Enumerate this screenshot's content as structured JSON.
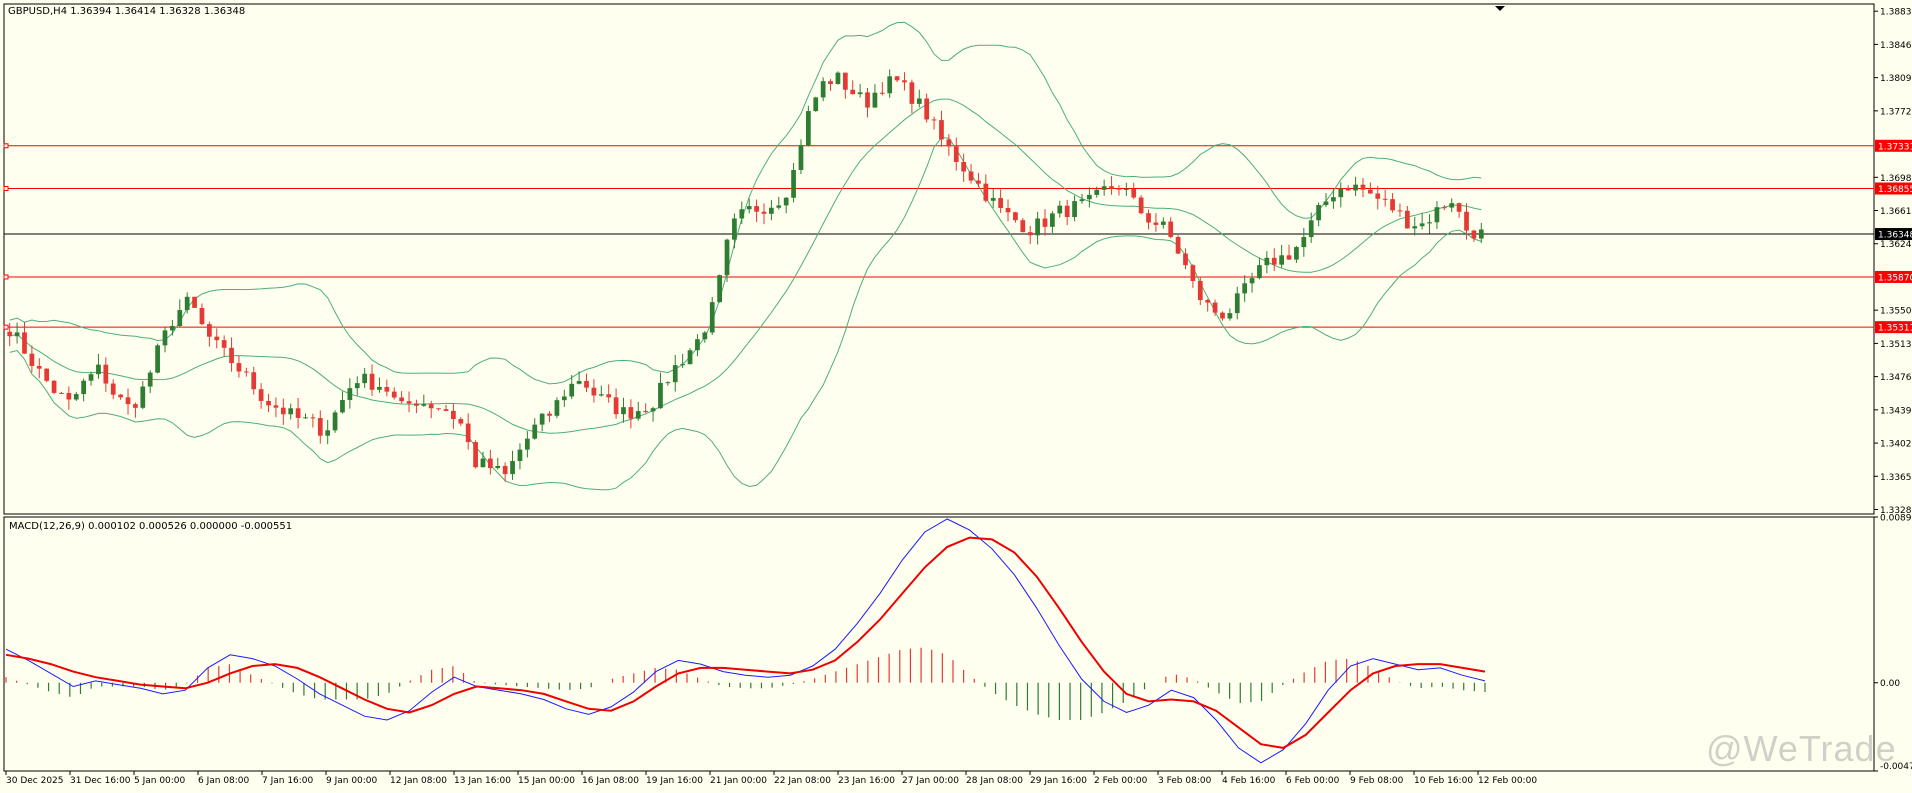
{
  "window": {
    "header": "GBPUSD,H4  1.36394 1.36414 1.36328 1.36348",
    "macd_header": "MACD(12,26,9) 0.000102 0.000526 0.000000 -0.000551",
    "watermark": "@WeTrade"
  },
  "colors": {
    "background": "#fffff0",
    "bull": "#2e7d32",
    "bear": "#e53935",
    "band": "#4caf77",
    "level_line": "#ff0000",
    "price_line": "#000000",
    "macd_line": "#1a1aff",
    "signal_line": "#ee0000",
    "hist_up": "#e53935",
    "hist_down": "#2e7d32"
  },
  "chart_data": [
    {
      "type": "candlestick",
      "symbol": "GBPUSD",
      "timeframe": "H4",
      "ohlc_current": {
        "open": 1.36394,
        "high": 1.36414,
        "low": 1.36328,
        "close": 1.36348
      },
      "y_ticks": [
        "1.38830",
        "1.38460",
        "1.38090",
        "1.37720",
        "1.36980",
        "1.36610",
        "1.36240",
        "1.35500",
        "1.35130",
        "1.34760",
        "1.34390",
        "1.34020",
        "1.33650",
        "1.33280"
      ],
      "ylim": [
        1.3323,
        1.3891
      ],
      "x_ticks": [
        "30 Dec 2025",
        "31 Dec 16:00",
        "5 Jan 00:00",
        "6 Jan 08:00",
        "7 Jan 16:00",
        "9 Jan 00:00",
        "12 Jan 08:00",
        "13 Jan 16:00",
        "15 Jan 00:00",
        "16 Jan 08:00",
        "19 Jan 16:00",
        "21 Jan 00:00",
        "22 Jan 08:00",
        "23 Jan 16:00",
        "27 Jan 00:00",
        "28 Jan 08:00",
        "29 Jan 16:00",
        "2 Feb 00:00",
        "3 Feb 08:00",
        "4 Feb 16:00",
        "6 Feb 00:00",
        "9 Feb 08:00",
        "10 Feb 16:00",
        "12 Feb 00:00"
      ],
      "horizontal_levels": [
        1.37331,
        1.36855,
        1.3587,
        1.35311
      ],
      "level_labels": [
        "1.37331",
        "1.36855",
        "1.35870",
        "1.35311"
      ],
      "current_price": 1.36348,
      "current_price_label": "1.36348",
      "close_path": [
        1.353,
        1.3505,
        1.348,
        1.346,
        1.3445,
        1.347,
        1.3485,
        1.3455,
        1.344,
        1.3465,
        1.351,
        1.3545,
        1.356,
        1.3525,
        1.3505,
        1.349,
        1.347,
        1.345,
        1.344,
        1.343,
        1.3425,
        1.3415,
        1.3445,
        1.3475,
        1.347,
        1.3465,
        1.344,
        1.345,
        1.3445,
        1.344,
        1.3425,
        1.338,
        1.3375,
        1.3365,
        1.3395,
        1.342,
        1.3435,
        1.346,
        1.3475,
        1.3455,
        1.3445,
        1.3435,
        1.344,
        1.345,
        1.348,
        1.35,
        1.352,
        1.356,
        1.364,
        1.366,
        1.3665,
        1.367,
        1.369,
        1.376,
        1.38,
        1.381,
        1.3795,
        1.378,
        1.38,
        1.3805,
        1.379,
        1.377,
        1.374,
        1.372,
        1.37,
        1.368,
        1.366,
        1.365,
        1.364,
        1.365,
        1.366,
        1.3665,
        1.367,
        1.3685,
        1.369,
        1.3665,
        1.365,
        1.364,
        1.361,
        1.357,
        1.355,
        1.3545,
        1.3565,
        1.359,
        1.3605,
        1.361,
        1.3625,
        1.3655,
        1.368,
        1.369,
        1.3685,
        1.3675,
        1.3665,
        1.365,
        1.3645,
        1.366,
        1.3675,
        1.364,
        1.3635
      ]
    },
    {
      "type": "bar+line",
      "indicator": "MACD(12,26,9)",
      "y_ticks": [
        "0.008906",
        "0.00",
        "-0.004742"
      ],
      "ylim": [
        -0.004742,
        0.008906
      ],
      "macd": [
        0.0018,
        0.0012,
        0.0005,
        -0.0002,
        0.0001,
        -0.0001,
        -0.0003,
        -0.0006,
        -0.0004,
        0.0008,
        0.0015,
        0.0013,
        0.0009,
        0.0002,
        -0.0006,
        -0.0012,
        -0.0018,
        -0.002,
        -0.0015,
        -0.0005,
        0.0003,
        -0.0002,
        -0.0004,
        -0.0006,
        -0.0009,
        -0.0014,
        -0.0017,
        -0.0013,
        -0.0005,
        0.0006,
        0.0012,
        0.001,
        0.0006,
        0.0004,
        0.0003,
        0.0004,
        0.0009,
        0.0018,
        0.0032,
        0.0048,
        0.0066,
        0.0081,
        0.0088,
        0.0082,
        0.0072,
        0.0058,
        0.004,
        0.002,
        0.0002,
        -0.001,
        -0.0016,
        -0.0012,
        -0.0004,
        -0.0008,
        -0.002,
        -0.0035,
        -0.0043,
        -0.0036,
        -0.0022,
        -0.0004,
        0.0009,
        0.0013,
        0.001,
        0.0007,
        0.0008,
        0.0004,
        0.0001
      ],
      "signal": [
        0.0015,
        0.0013,
        0.001,
        0.0006,
        0.0003,
        0.0001,
        -0.0001,
        -0.0002,
        -0.0003,
        0.0,
        0.0005,
        0.0009,
        0.001,
        0.0008,
        0.0003,
        -0.0003,
        -0.0009,
        -0.0014,
        -0.0016,
        -0.0012,
        -0.0006,
        -0.0002,
        -0.0003,
        -0.0004,
        -0.0006,
        -0.001,
        -0.0014,
        -0.0015,
        -0.001,
        -0.0002,
        0.0005,
        0.0008,
        0.0008,
        0.0007,
        0.0006,
        0.0005,
        0.0007,
        0.0012,
        0.0022,
        0.0034,
        0.0048,
        0.0062,
        0.0073,
        0.0078,
        0.0077,
        0.007,
        0.0057,
        0.004,
        0.0022,
        0.0006,
        -0.0006,
        -0.001,
        -0.0009,
        -0.001,
        -0.0015,
        -0.0024,
        -0.0033,
        -0.0035,
        -0.0028,
        -0.0016,
        -0.0004,
        0.0005,
        0.0009,
        0.001,
        0.001,
        0.0008,
        0.0006
      ],
      "histogram": [
        0.0003,
        -0.0001,
        -0.0005,
        -0.0008,
        -0.0002,
        -0.0002,
        -0.0002,
        -0.0004,
        -0.0001,
        0.0008,
        0.001,
        0.0004,
        -0.0001,
        -0.0006,
        -0.0009,
        -0.0009,
        -0.0009,
        -0.0006,
        0.0001,
        0.0007,
        0.0009,
        0.0,
        -0.0001,
        -0.0002,
        -0.0003,
        -0.0004,
        -0.0003,
        0.0002,
        0.0005,
        0.0008,
        0.0007,
        0.0002,
        -0.0002,
        -0.0003,
        -0.0003,
        -0.0001,
        0.0002,
        0.0006,
        0.001,
        0.0014,
        0.0018,
        0.0019,
        0.0015,
        0.0004,
        -0.0005,
        -0.0012,
        -0.0017,
        -0.002,
        -0.002,
        -0.0016,
        -0.001,
        -0.0002,
        0.0005,
        0.0002,
        -0.0005,
        -0.0011,
        -0.001,
        -0.0001,
        0.0006,
        0.0012,
        0.0013,
        0.0008,
        0.0001,
        -0.0003,
        -0.0002,
        -0.0004,
        -0.0005
      ]
    }
  ]
}
